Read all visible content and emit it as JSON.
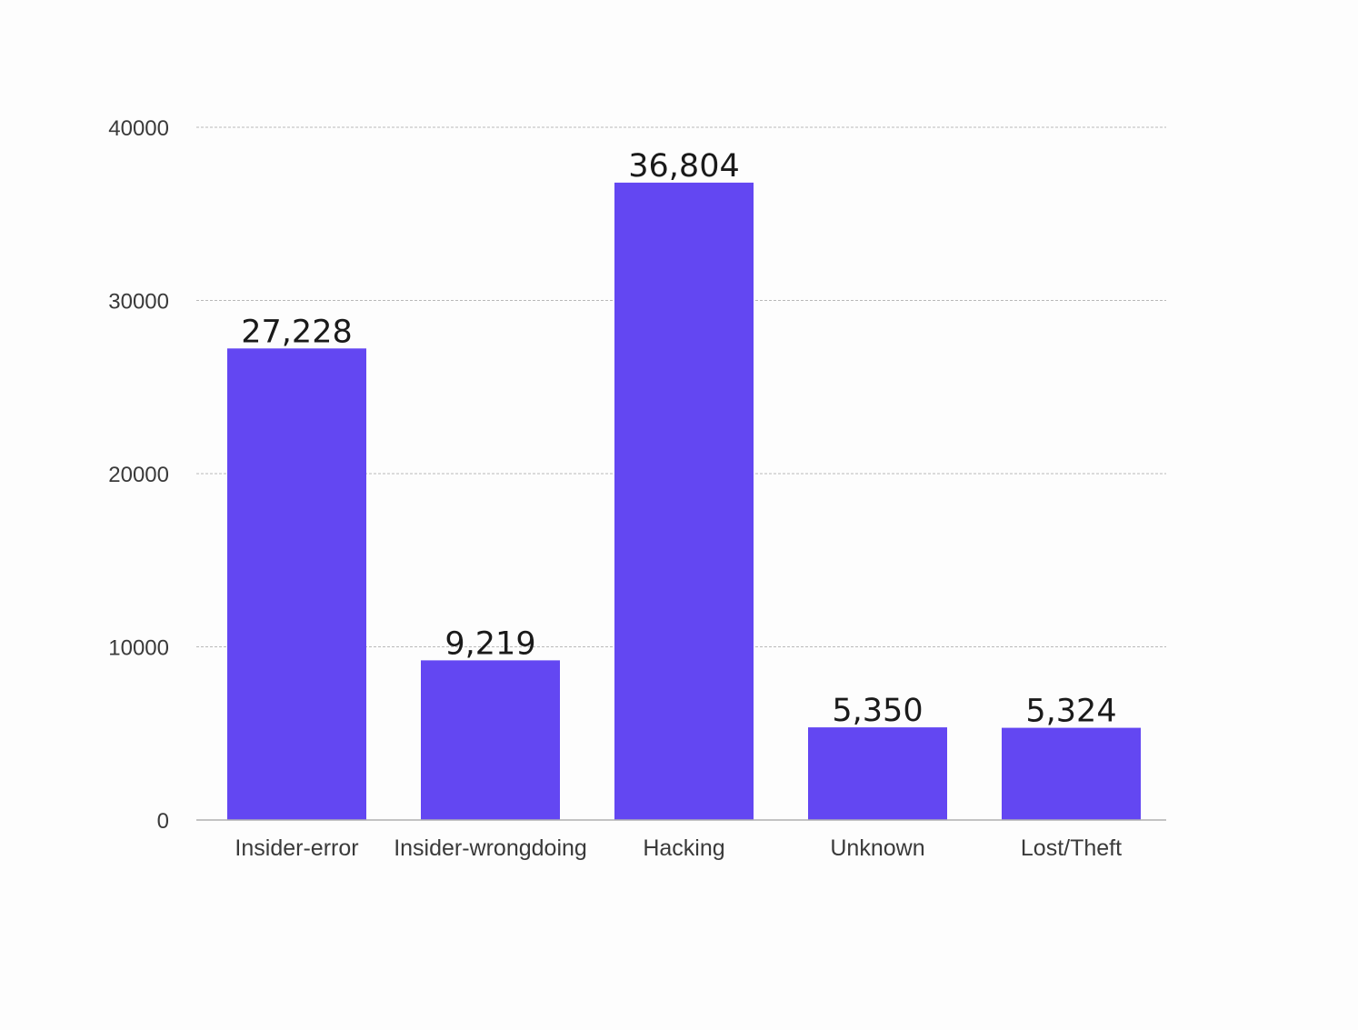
{
  "chart_data": {
    "type": "bar",
    "categories": [
      "Insider-error",
      "Insider-wrongdoing",
      "Hacking",
      "Unknown",
      "Lost/Theft"
    ],
    "values": [
      27228,
      9219,
      36804,
      5350,
      5324
    ],
    "data_labels": [
      "27,228",
      "9,219",
      "36,804",
      "5,350",
      "5,324"
    ],
    "y_ticks": [
      0,
      10000,
      20000,
      30000,
      40000
    ],
    "y_tick_labels": [
      "0",
      "10000",
      "20000",
      "30000",
      "40000"
    ],
    "ylim": [
      0,
      40000
    ],
    "grid": true,
    "legend": "none",
    "bar_color": "#6347f2"
  }
}
